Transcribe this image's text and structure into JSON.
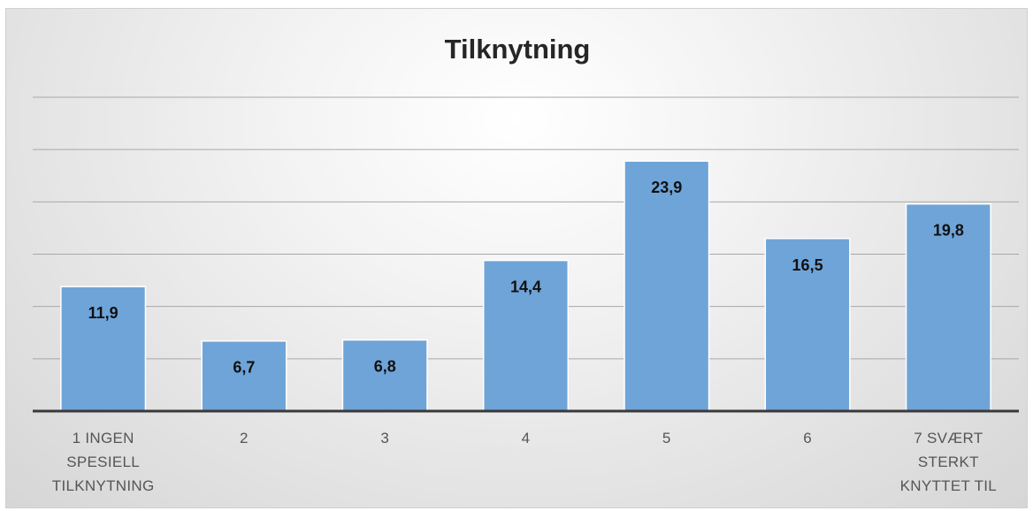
{
  "chart_data": {
    "type": "bar",
    "title": "Tilknytning",
    "categories": [
      [
        "1 INGEN",
        "SPESIELL",
        "TILKNYTNING"
      ],
      [
        "2"
      ],
      [
        "3"
      ],
      [
        "4"
      ],
      [
        "5"
      ],
      [
        "6"
      ],
      [
        "7 SVÆRT",
        "STERKT",
        "KNYTTET TIL"
      ]
    ],
    "values": [
      11.9,
      6.7,
      6.8,
      14.4,
      23.9,
      16.5,
      19.8
    ],
    "value_labels": [
      "11,9",
      "6,7",
      "6,8",
      "14,4",
      "23,9",
      "16,5",
      "19,8"
    ],
    "ylim": [
      0,
      30
    ],
    "ytick_step": 5,
    "show_y_tick_labels": false,
    "grid": true,
    "legend": "none",
    "bar_color": "#6fa4d8",
    "bar_edge_color": "#ffffff",
    "axis_color": "#3a3a3a",
    "grid_color": "#a8a8a8"
  }
}
